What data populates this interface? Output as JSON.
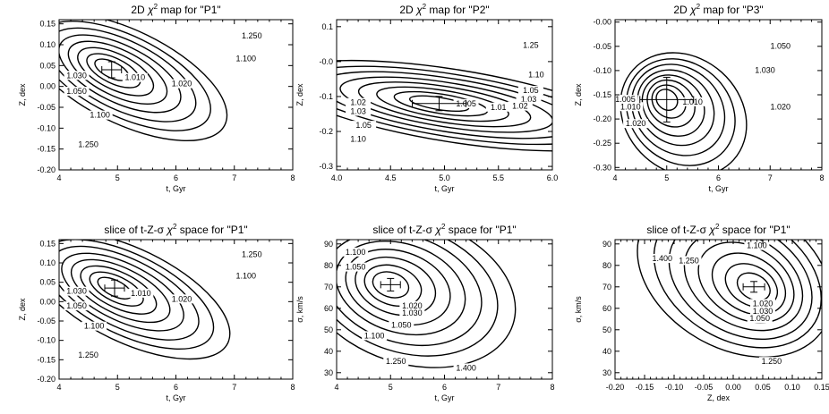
{
  "chart_data": [
    {
      "id": "p1",
      "type": "contour",
      "title_prefix": "2D ",
      "title_suffix": " map for \"P1\"",
      "xlabel": "t, Gyr",
      "ylabel": "Z, dex",
      "xlim": [
        4,
        8
      ],
      "ylim": [
        -0.2,
        0.16
      ],
      "xticks": [
        "4",
        "5",
        "6",
        "7",
        "8"
      ],
      "yticks": [
        "-0.20",
        "-0.15",
        "-0.10",
        "-0.05",
        "0.00",
        "0.05",
        "0.10",
        "0.15"
      ],
      "center": [
        4.9,
        0.04
      ],
      "contours": [
        0.1,
        0.25,
        0.5,
        0.85,
        1.3,
        1.9,
        2.6,
        3.5
      ],
      "contour_labels": [
        {
          "text": "1.250",
          "x": 7.3,
          "y": 0.115
        },
        {
          "text": "1.100",
          "x": 7.2,
          "y": 0.06
        },
        {
          "text": "1.020",
          "x": 6.1,
          "y": 0.0
        },
        {
          "text": "1.010",
          "x": 5.3,
          "y": 0.015
        },
        {
          "text": "1.030",
          "x": 4.3,
          "y": 0.02
        },
        {
          "text": "1.050",
          "x": 4.3,
          "y": -0.018
        },
        {
          "text": "1.100",
          "x": 4.7,
          "y": -0.075
        },
        {
          "text": "1.250",
          "x": 4.5,
          "y": -0.145
        }
      ]
    },
    {
      "id": "p2",
      "type": "contour",
      "title_prefix": "2D ",
      "title_suffix": " map for \"P2\"",
      "xlabel": "t, Gyr",
      "ylabel": "Z, dex",
      "xlim": [
        4.0,
        6.0
      ],
      "ylim": [
        -0.31,
        0.12
      ],
      "xticks": [
        "4.0",
        "4.5",
        "5.0",
        "5.5",
        "6.0"
      ],
      "yticks": [
        "-0.3",
        "-0.2",
        "-0.1",
        "-0.0",
        "0.1"
      ],
      "center": [
        4.95,
        -0.12
      ],
      "contours": [
        0.1,
        0.25,
        0.5,
        0.85,
        1.3,
        1.9,
        2.6,
        3.5
      ],
      "contour_labels": [
        {
          "text": "1.25",
          "x": 5.8,
          "y": 0.04
        },
        {
          "text": "1.10",
          "x": 5.85,
          "y": -0.045
        },
        {
          "text": "1.05",
          "x": 5.8,
          "y": -0.09
        },
        {
          "text": "1.03",
          "x": 5.78,
          "y": -0.115
        },
        {
          "text": "1.02",
          "x": 5.7,
          "y": -0.135
        },
        {
          "text": "1.01",
          "x": 5.5,
          "y": -0.138
        },
        {
          "text": "1.005",
          "x": 5.2,
          "y": -0.128
        },
        {
          "text": "1.02",
          "x": 4.2,
          "y": -0.125
        },
        {
          "text": "1.03",
          "x": 4.2,
          "y": -0.15
        },
        {
          "text": "1.05",
          "x": 4.25,
          "y": -0.19
        },
        {
          "text": "1.10",
          "x": 4.2,
          "y": -0.23
        }
      ]
    },
    {
      "id": "p3",
      "type": "contour",
      "title_prefix": "2D ",
      "title_suffix": " map for \"P3\"",
      "xlabel": "t, Gyr",
      "ylabel": "Z, dex",
      "xlim": [
        4,
        8
      ],
      "ylim": [
        -0.305,
        0.005
      ],
      "xticks": [
        "4",
        "5",
        "6",
        "7",
        "8"
      ],
      "yticks": [
        "-0.30",
        "-0.25",
        "-0.20",
        "-0.15",
        "-0.10",
        "-0.05",
        "-0.00"
      ],
      "center": [
        5.0,
        -0.16
      ],
      "contours": [
        0.1,
        0.25,
        0.5,
        0.85,
        1.3,
        1.9,
        2.6,
        3.5
      ],
      "contour_labels": [
        {
          "text": "1.050",
          "x": 7.2,
          "y": -0.055
        },
        {
          "text": "1.030",
          "x": 6.9,
          "y": -0.105
        },
        {
          "text": "1.020",
          "x": 7.2,
          "y": -0.18
        },
        {
          "text": "1.010",
          "x": 5.5,
          "y": -0.17
        },
        {
          "text": "1.005",
          "x": 4.2,
          "y": -0.165
        },
        {
          "text": "1.010",
          "x": 4.3,
          "y": -0.18
        },
        {
          "text": "1.020",
          "x": 4.4,
          "y": -0.215
        }
      ]
    },
    {
      "id": "p4",
      "type": "contour",
      "title_prefix": "slice of t-Z-σ ",
      "title_suffix": " space for \"P1\"",
      "xlabel": "t, Gyr",
      "ylabel": "Z, dex",
      "xlim": [
        4,
        8
      ],
      "ylim": [
        -0.2,
        0.16
      ],
      "xticks": [
        "4",
        "5",
        "6",
        "7",
        "8"
      ],
      "yticks": [
        "-0.20",
        "-0.15",
        "-0.10",
        "-0.05",
        "0.00",
        "0.05",
        "0.10",
        "0.15"
      ],
      "center": [
        4.95,
        0.035
      ],
      "contours": [
        0.1,
        0.25,
        0.5,
        0.85,
        1.3,
        1.9,
        2.6,
        3.5
      ],
      "contour_labels": [
        {
          "text": "1.250",
          "x": 7.3,
          "y": 0.115
        },
        {
          "text": "1.100",
          "x": 7.2,
          "y": 0.06
        },
        {
          "text": "1.020",
          "x": 6.1,
          "y": 0.0
        },
        {
          "text": "1.010",
          "x": 5.4,
          "y": 0.015
        },
        {
          "text": "1.030",
          "x": 4.3,
          "y": 0.02
        },
        {
          "text": "1.050",
          "x": 4.3,
          "y": -0.018
        },
        {
          "text": "1.100",
          "x": 4.6,
          "y": -0.07
        },
        {
          "text": "1.250",
          "x": 4.5,
          "y": -0.145
        }
      ]
    },
    {
      "id": "p5",
      "type": "contour",
      "title_prefix": "slice of t-Z-σ ",
      "title_suffix": " space for \"P1\"",
      "xlabel": "t, Gyr",
      "ylabel": "σ, km/s",
      "xlim": [
        4,
        8
      ],
      "ylim": [
        27,
        92
      ],
      "xticks": [
        "4",
        "5",
        "6",
        "7",
        "8"
      ],
      "yticks": [
        "30",
        "40",
        "50",
        "60",
        "70",
        "80",
        "90"
      ],
      "center": [
        5.0,
        71.0
      ],
      "contours": [
        0.1,
        0.25,
        0.5,
        0.85,
        1.3,
        1.9,
        2.6,
        3.5
      ],
      "contour_labels": [
        {
          "text": "1.100",
          "x": 4.35,
          "y": 85
        },
        {
          "text": "1.050",
          "x": 4.35,
          "y": 78
        },
        {
          "text": "1.020",
          "x": 5.4,
          "y": 60
        },
        {
          "text": "1.030",
          "x": 5.4,
          "y": 56.5
        },
        {
          "text": "1.050",
          "x": 5.2,
          "y": 51
        },
        {
          "text": "1.100",
          "x": 4.7,
          "y": 46
        },
        {
          "text": "1.250",
          "x": 5.1,
          "y": 34
        },
        {
          "text": "1.400",
          "x": 6.4,
          "y": 31
        }
      ]
    },
    {
      "id": "p6",
      "type": "contour",
      "title_prefix": "slice of t-Z-σ ",
      "title_suffix": " space for \"P1\"",
      "xlabel": "Z, dex",
      "ylabel": "σ, km/s",
      "xlim": [
        -0.2,
        0.15
      ],
      "ylim": [
        27,
        92
      ],
      "xticks": [
        "-0.20",
        "-0.15",
        "-0.10",
        "-0.05",
        "0.00",
        "0.05",
        "0.10",
        "0.15"
      ],
      "yticks": [
        "30",
        "40",
        "50",
        "60",
        "70",
        "80",
        "90"
      ],
      "center": [
        0.035,
        70.0
      ],
      "contours": [
        0.1,
        0.25,
        0.5,
        0.85,
        1.3,
        1.9,
        2.6,
        3.5
      ],
      "contour_labels": [
        {
          "text": "1.400",
          "x": -0.12,
          "y": 82
        },
        {
          "text": "1.250",
          "x": -0.075,
          "y": 81
        },
        {
          "text": "1.100",
          "x": 0.04,
          "y": 88
        },
        {
          "text": "1.020",
          "x": 0.05,
          "y": 61
        },
        {
          "text": "1.030",
          "x": 0.05,
          "y": 57.5
        },
        {
          "text": "1.050",
          "x": 0.045,
          "y": 54
        },
        {
          "text": "1.250",
          "x": 0.065,
          "y": 34
        }
      ]
    }
  ]
}
